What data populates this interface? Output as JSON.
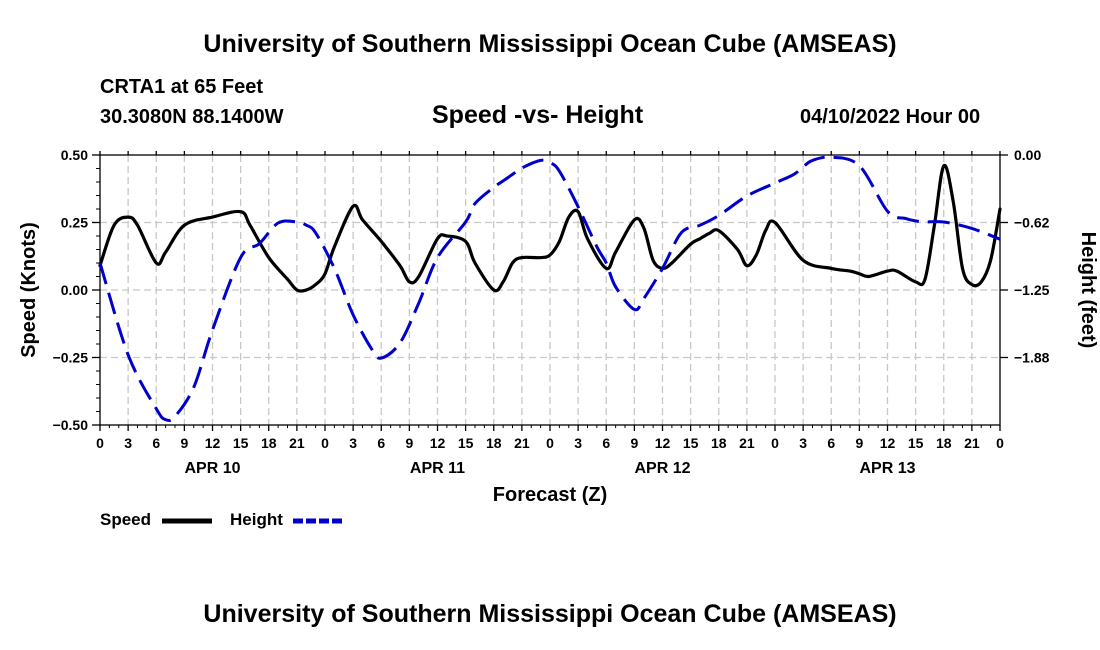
{
  "header": {
    "title_top": "University of Southern Mississippi Ocean Cube (AMSEAS)",
    "station_line": "CRTA1 at 65 Feet",
    "coords_line": "30.3080N  88.1400W",
    "chart_subtitle": "Speed -vs- Height",
    "datetime": "04/10/2022 Hour 00",
    "title_bottom": "University of Southern Mississippi Ocean Cube (AMSEAS)"
  },
  "colors": {
    "speed": "#000000",
    "height": "#0000cc",
    "grid": "#c8c8c8"
  },
  "chart_data": {
    "type": "line",
    "title": "Speed -vs- Height",
    "xlabel": "Forecast (Z)",
    "ylabel": "Speed (Knots)",
    "ylabel_right": "Height (feet)",
    "xlim": [
      0,
      96
    ],
    "ylim": [
      -0.5,
      0.5
    ],
    "ylim_right": [
      -2.5,
      0.0
    ],
    "x_tick_labels": [
      "0",
      "3",
      "6",
      "9",
      "12",
      "15",
      "18",
      "21",
      "0",
      "3",
      "6",
      "9",
      "12",
      "15",
      "18",
      "21",
      "0",
      "3",
      "6",
      "9",
      "12",
      "15",
      "18",
      "21",
      "0",
      "3",
      "6",
      "9",
      "12",
      "15",
      "18",
      "21",
      "0"
    ],
    "date_labels": [
      {
        "label": "APR 10",
        "hour": 12
      },
      {
        "label": "APR 11",
        "hour": 36
      },
      {
        "label": "APR 12",
        "hour": 60
      },
      {
        "label": "APR 13",
        "hour": 84
      }
    ],
    "y_ticks_left": [
      "0.50",
      "0.25",
      "0.00",
      "−0.25",
      "−0.50"
    ],
    "y_ticks_right": [
      "0.00",
      "−0.62",
      "−1.25",
      "−1.88"
    ],
    "legend": [
      "Speed",
      "Height"
    ],
    "series": [
      {
        "name": "Speed",
        "axis": "left",
        "style": "solid",
        "x": [
          0,
          1.5,
          3,
          4,
          6,
          7,
          9,
          12,
          15,
          16,
          18,
          20,
          21,
          22,
          23,
          24,
          25,
          27,
          28,
          30,
          32,
          33,
          34,
          36,
          37,
          39,
          40,
          42,
          43,
          44,
          45,
          47,
          48,
          49,
          50,
          51,
          52,
          54,
          55,
          57,
          58,
          59,
          60,
          61,
          63,
          64,
          65,
          66,
          68,
          69,
          70,
          71,
          72,
          75,
          78,
          80,
          81,
          82,
          84,
          85,
          87,
          88,
          89,
          90,
          91,
          92,
          93,
          94,
          95,
          96
        ],
        "y": [
          0.09,
          0.24,
          0.27,
          0.24,
          0.1,
          0.14,
          0.24,
          0.27,
          0.29,
          0.24,
          0.12,
          0.04,
          0.0,
          0.0,
          0.02,
          0.06,
          0.16,
          0.31,
          0.26,
          0.18,
          0.09,
          0.03,
          0.05,
          0.19,
          0.2,
          0.18,
          0.1,
          0.0,
          0.03,
          0.1,
          0.12,
          0.12,
          0.13,
          0.18,
          0.27,
          0.29,
          0.19,
          0.08,
          0.14,
          0.26,
          0.23,
          0.11,
          0.08,
          0.1,
          0.17,
          0.19,
          0.21,
          0.22,
          0.15,
          0.09,
          0.13,
          0.22,
          0.25,
          0.11,
          0.08,
          0.07,
          0.06,
          0.05,
          0.07,
          0.07,
          0.03,
          0.04,
          0.24,
          0.46,
          0.33,
          0.08,
          0.02,
          0.03,
          0.11,
          0.3
        ]
      },
      {
        "name": "Height",
        "axis": "right",
        "style": "dashed",
        "x": [
          0,
          3,
          6,
          7,
          8,
          10,
          12,
          15,
          17,
          19,
          21,
          22,
          23,
          25,
          27,
          29,
          30,
          32,
          34,
          36,
          39,
          40,
          42,
          43,
          44,
          45,
          47,
          48,
          49,
          51,
          53,
          54,
          55,
          57,
          58,
          60,
          62,
          64,
          66,
          69,
          72,
          74,
          75,
          76,
          78,
          81,
          84,
          86,
          87,
          88,
          90,
          93,
          96
        ],
        "y": [
          -1.0,
          -1.85,
          -2.35,
          -2.45,
          -2.42,
          -2.15,
          -1.62,
          -0.95,
          -0.82,
          -0.63,
          -0.62,
          -0.65,
          -0.72,
          -1.05,
          -1.48,
          -1.8,
          -1.88,
          -1.74,
          -1.37,
          -0.95,
          -0.62,
          -0.45,
          -0.3,
          -0.24,
          -0.18,
          -0.12,
          -0.05,
          -0.07,
          -0.15,
          -0.48,
          -0.85,
          -1.0,
          -1.22,
          -1.43,
          -1.33,
          -1.05,
          -0.72,
          -0.65,
          -0.56,
          -0.38,
          -0.26,
          -0.18,
          -0.11,
          -0.05,
          -0.02,
          -0.1,
          -0.52,
          -0.59,
          -0.61,
          -0.62,
          -0.62,
          -0.68,
          -0.78
        ]
      }
    ]
  }
}
